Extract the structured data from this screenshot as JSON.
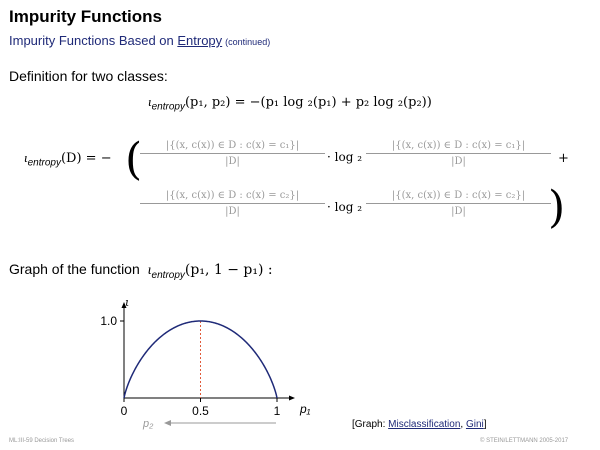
{
  "title": "Impurity Functions",
  "subtitle": {
    "prefix": "Impurity Functions Based on ",
    "link": "Entropy",
    "suffix": "(continued)"
  },
  "definition_heading": "Definition for two classes:",
  "formula_binary": {
    "iota": "ι",
    "subscript": "entropy",
    "text": "(p₁, p₂) = −(p₁ log ₂(p₁) + p₂ log ₂(p₂))"
  },
  "formula_dataset": {
    "lhs_iota": "ι",
    "lhs_subscript": "entropy",
    "lhs_rest": "(D) = −",
    "open_paren": "(",
    "close_paren": ")",
    "frac_c1_num": "|{(x, c(x)) ∈ D : c(x) = c₁}|",
    "frac_c2_num": "|{(x, c(x)) ∈ D : c(x) = c₂}|",
    "frac_den": "|D|",
    "dot_log": "· log ₂",
    "plus": "+"
  },
  "graph_heading": {
    "prefix": "Graph of the function",
    "iota": "ι",
    "subscript": "entropy",
    "suffix": "(p₁, 1 − p₁) :"
  },
  "chart_data": {
    "type": "line",
    "ylabel": "ι",
    "xlabel": "p₁",
    "secondary_xlabel": "p₂",
    "x_ticks": [
      "0",
      "0.5",
      "1"
    ],
    "y_ticks": [
      "1.0"
    ],
    "xlim": [
      0,
      1
    ],
    "ylim": [
      0,
      1
    ],
    "series": [
      {
        "values": [
          {
            "x": 0.0,
            "y": 0.0
          },
          {
            "x": 0.05,
            "y": 0.286
          },
          {
            "x": 0.1,
            "y": 0.469
          },
          {
            "x": 0.2,
            "y": 0.722
          },
          {
            "x": 0.3,
            "y": 0.881
          },
          {
            "x": 0.4,
            "y": 0.971
          },
          {
            "x": 0.5,
            "y": 1.0
          },
          {
            "x": 0.6,
            "y": 0.971
          },
          {
            "x": 0.7,
            "y": 0.881
          },
          {
            "x": 0.8,
            "y": 0.722
          },
          {
            "x": 0.9,
            "y": 0.469
          },
          {
            "x": 0.95,
            "y": 0.286
          },
          {
            "x": 1.0,
            "y": 0.0
          }
        ]
      }
    ],
    "max_marker_x": 0.5,
    "colors": {
      "curve": "#1f2a78",
      "marker": "#e05a3a",
      "axis": "#000000",
      "secondary": "#999999"
    }
  },
  "links": {
    "prefix": "[Graph: ",
    "misclassification": "Misclassification",
    "separator": ", ",
    "gini": "Gini",
    "suffix": "]"
  },
  "footer": {
    "left": "ML:III-59    Decision Trees",
    "right": "© STEIN/LETTMANN 2005-2017"
  }
}
